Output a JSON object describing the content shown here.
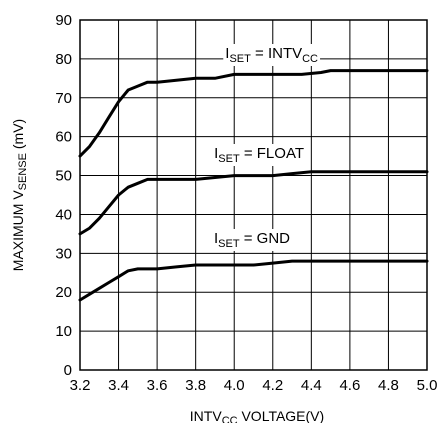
{
  "chart_data": {
    "type": "line",
    "title": "",
    "xlabel": {
      "main": "INTV",
      "sub": "CC",
      "rest": " VOLTAGE(V)"
    },
    "ylabel": {
      "main": "MAXIMUM V",
      "sub": "SENSE",
      "rest": " (mV)"
    },
    "xlim": [
      3.2,
      5.0
    ],
    "ylim": [
      0,
      90
    ],
    "x_ticks": [
      "3.2",
      "3.4",
      "3.6",
      "3.8",
      "4.0",
      "4.2",
      "4.4",
      "4.6",
      "4.8",
      "5.0"
    ],
    "y_ticks": [
      "0",
      "10",
      "20",
      "30",
      "40",
      "50",
      "60",
      "70",
      "80",
      "90"
    ],
    "grid": true,
    "series": [
      {
        "label": {
          "main": "I",
          "sub": "SET",
          "mid": " = INTV",
          "sub2": "CC"
        },
        "x": [
          3.2,
          3.25,
          3.3,
          3.35,
          3.4,
          3.45,
          3.5,
          3.55,
          3.6,
          3.7,
          3.8,
          3.9,
          4.0,
          4.1,
          4.2,
          4.3,
          4.35,
          4.45,
          4.5,
          4.6,
          4.8,
          5.0
        ],
        "y": [
          55,
          57.5,
          61,
          65,
          69,
          72,
          73,
          74,
          74,
          74.5,
          75,
          75,
          76,
          76,
          76,
          76,
          76,
          76.5,
          77,
          77,
          77,
          77
        ]
      },
      {
        "label": {
          "main": "I",
          "sub": "SET",
          "mid": " = FLOAT",
          "sub2": ""
        },
        "x": [
          3.2,
          3.25,
          3.3,
          3.35,
          3.4,
          3.45,
          3.5,
          3.55,
          3.6,
          3.7,
          3.8,
          3.9,
          4.0,
          4.1,
          4.2,
          4.3,
          4.4,
          4.6,
          4.8,
          5.0
        ],
        "y": [
          35,
          36.5,
          39,
          42,
          45,
          47,
          48,
          49,
          49,
          49,
          49,
          49.5,
          50,
          50,
          50,
          50.5,
          51,
          51,
          51,
          51
        ]
      },
      {
        "label": {
          "main": "I",
          "sub": "SET",
          "mid": " = GND",
          "sub2": ""
        },
        "x": [
          3.2,
          3.25,
          3.3,
          3.35,
          3.4,
          3.45,
          3.5,
          3.6,
          3.7,
          3.8,
          3.9,
          4.0,
          4.1,
          4.2,
          4.3,
          4.4,
          4.6,
          4.8,
          5.0
        ],
        "y": [
          18,
          19.5,
          21,
          22.5,
          24,
          25.5,
          26,
          26,
          26.5,
          27,
          27,
          27,
          27,
          27.5,
          28,
          28,
          28,
          28,
          28
        ]
      }
    ]
  }
}
